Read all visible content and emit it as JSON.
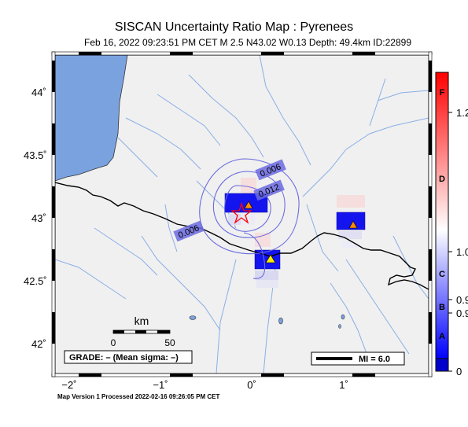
{
  "header": {
    "title": "SISCAN Uncertainty Ratio Map : Pyrenees",
    "subtitle": "Feb 16, 2022 09:23:51 PM CET   M 2.5   N43.02 W0.13   Depth: 49.4km   ID:22899"
  },
  "map": {
    "lat_ticks": [
      "44˚",
      "43.5˚",
      "43˚",
      "42.5˚",
      "42˚"
    ],
    "lon_ticks": [
      "−2˚",
      "−1˚",
      "0˚",
      "1˚"
    ],
    "contours": [
      {
        "label": "0.006"
      },
      {
        "label": "0.012"
      },
      {
        "label": "0.006"
      }
    ],
    "scale_bar": {
      "title": "km",
      "left": "0",
      "right": "50"
    },
    "grade_box": "GRADE: – (Mean sigma: –)",
    "mi_legend": "MI = 6.0",
    "colors": {
      "land": "#f0f0f0",
      "ocean": "#7aa2df",
      "rivers": "#8aaee6",
      "border": "#000000",
      "contour": "#6a6ae0",
      "epicenter": "#ff0000",
      "station_orange": "#ff8a00",
      "station_yellow": "#ffee00",
      "cell_dark": "#1414ee"
    },
    "icons": {
      "epicenter": "star-icon",
      "station": "triangle-icon"
    }
  },
  "colorbar": {
    "letters": [
      "F",
      "D",
      "C",
      "B",
      "A"
    ],
    "values": [
      "1.2",
      "1.0",
      "0.9",
      "0.9",
      "0"
    ],
    "colors": {
      "top": "#ff0000",
      "mid": "#ffffff",
      "bottom": "#0000ff",
      "base": "#0000cc"
    }
  },
  "footer": {
    "text": "Map Version 1 Processed 2022-02-16 09:26:05 PM CET"
  }
}
